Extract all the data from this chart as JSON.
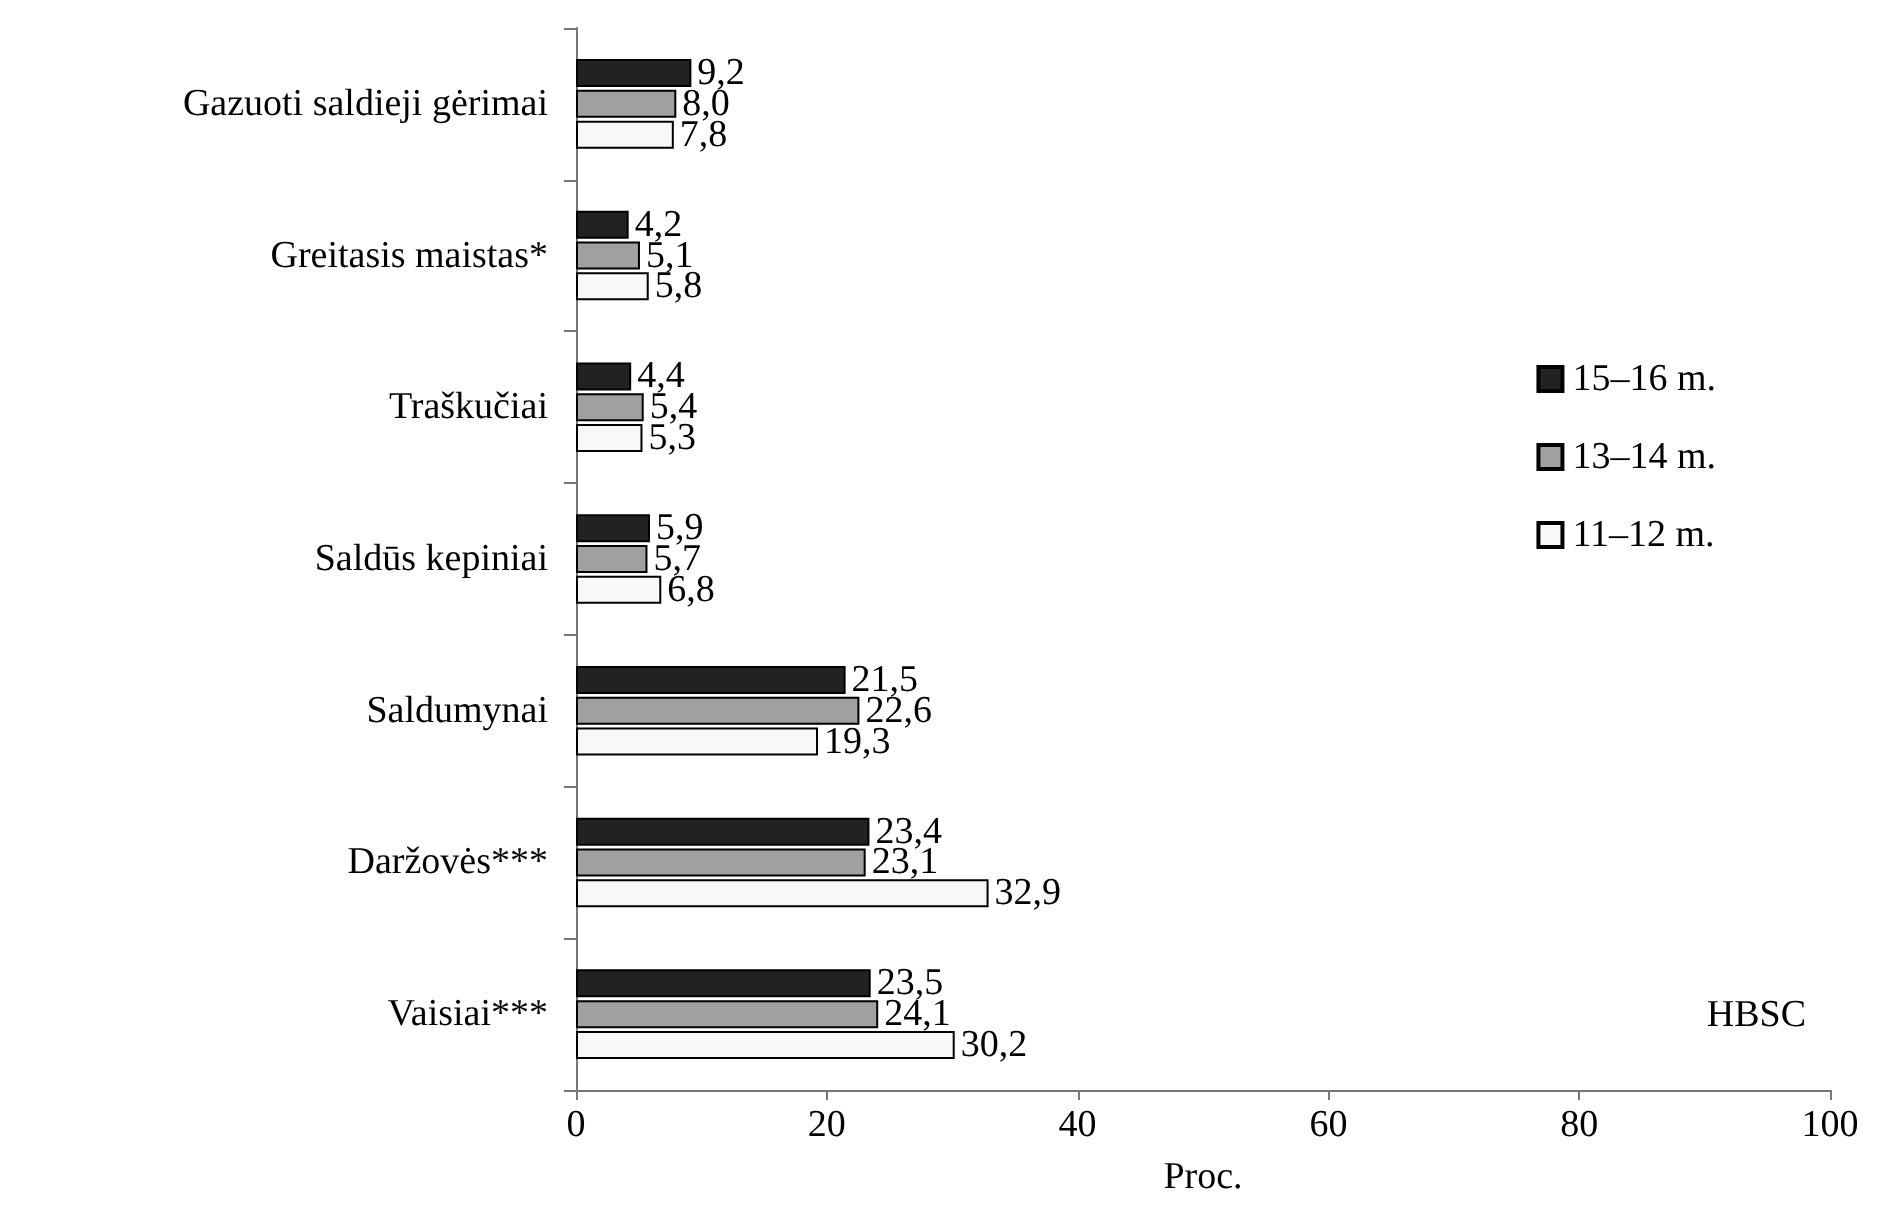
{
  "chart_data": {
    "type": "bar",
    "orientation": "horizontal",
    "xlabel": "Proc.",
    "categories": [
      "Gazuoti saldieji gėrimai",
      "Greitasis maistas*",
      "Traškučiai",
      "Saldūs kepiniai",
      "Saldumynai",
      "Daržovės***",
      "Vaisiai***"
    ],
    "series": [
      {
        "name": "15–16 m.",
        "color": "#222222",
        "values": [
          9.2,
          4.2,
          4.4,
          5.9,
          21.5,
          23.4,
          23.5
        ],
        "value_labels": [
          "9,2",
          "4,2",
          "4,4",
          "5,9",
          "21,5",
          "23,4",
          "23,5"
        ]
      },
      {
        "name": "13–14 m.",
        "color": "#a0a0a0",
        "values": [
          8.0,
          5.1,
          5.4,
          5.7,
          22.6,
          23.1,
          24.1
        ],
        "value_labels": [
          "8,0",
          "5,1",
          "5,4",
          "5,7",
          "22,6",
          "23,1",
          "24,1"
        ]
      },
      {
        "name": "11–12 m.",
        "color": "#f8f8f8",
        "values": [
          7.8,
          5.8,
          5.3,
          6.8,
          19.3,
          32.9,
          30.2
        ],
        "value_labels": [
          "7,8",
          "5,8",
          "5,3",
          "6,8",
          "19,3",
          "32,9",
          "30,2"
        ]
      }
    ],
    "xlim": [
      0,
      100
    ],
    "xticks": [
      0,
      20,
      40,
      60,
      80,
      100
    ],
    "annotations": [
      "HBSC"
    ],
    "grid": false,
    "legend": "right"
  }
}
